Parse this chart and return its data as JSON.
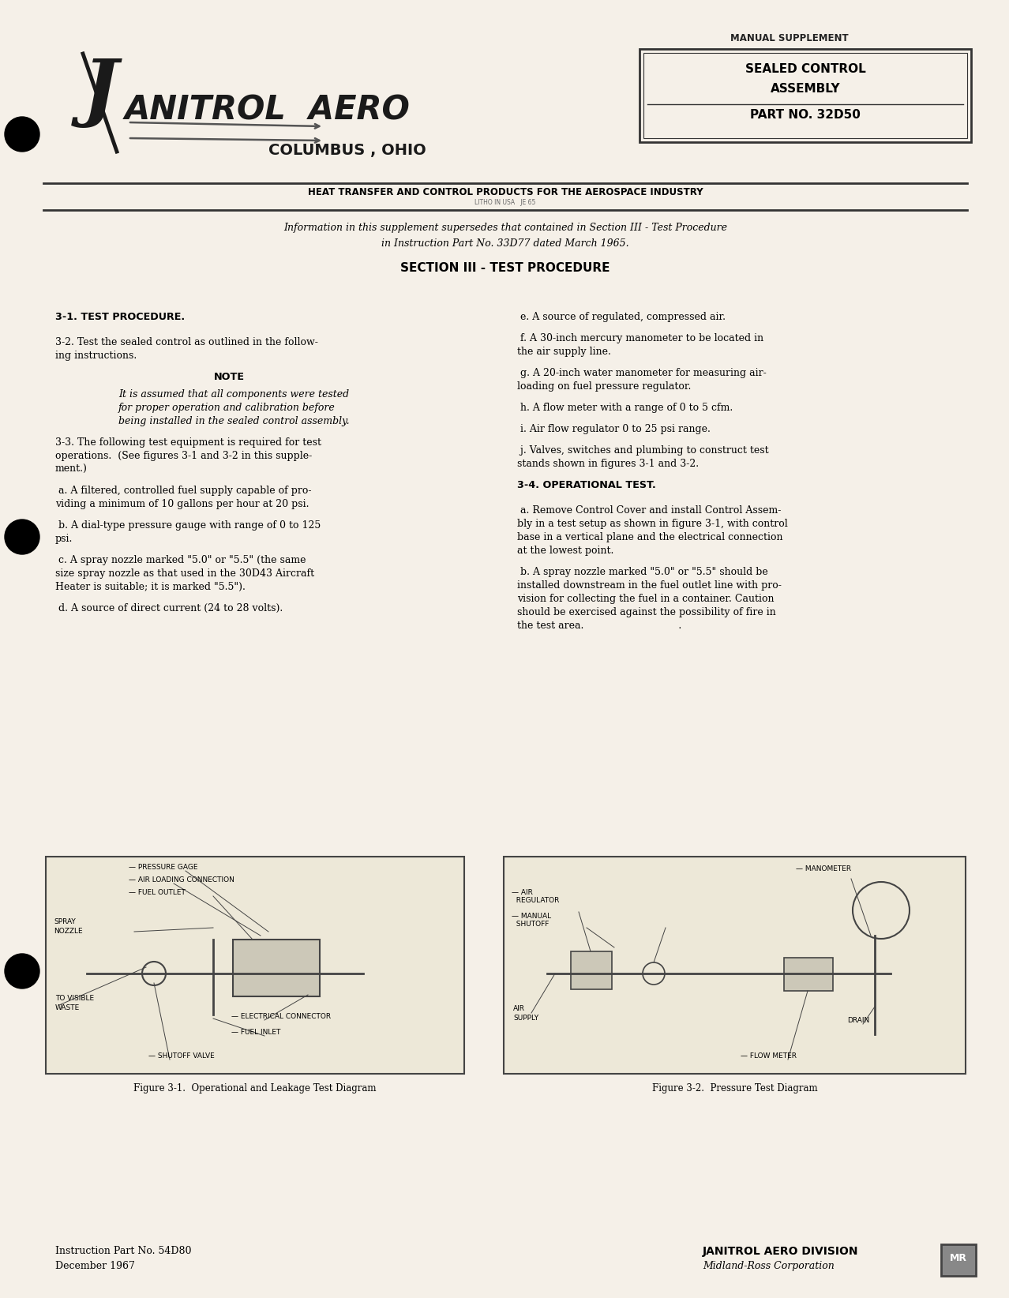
{
  "bg_color": "#f5f0e8",
  "page_width": 12.78,
  "page_height": 16.44,
  "header": {
    "manual_supplement_label": "MANUAL SUPPLEMENT",
    "box_title_line1": "SEALED CONTROL",
    "box_title_line2": "ASSEMBLY",
    "box_part_label": "PART NO. 32D50",
    "company_name": "JANITROL AERO",
    "city": "COLUMBUS , OHIO",
    "tagline": "HEAT TRANSFER AND CONTROL PRODUCTS FOR THE AEROSPACE INDUSTRY",
    "tagline_sub": "LITHO IN USA   JE 65"
  },
  "intro_text_line1": "Information in this supplement supersedes that contained in Section III - Test Procedure",
  "intro_text_line2": "in Instruction Part No. 33D77 dated March 1965.",
  "section_title": "SECTION III - TEST PROCEDURE",
  "left_col": [
    {
      "type": "heading",
      "text": "3-1. TEST PROCEDURE."
    },
    {
      "type": "body",
      "text": "3-2. Test the sealed control as outlined in the follow-\ning instructions."
    },
    {
      "type": "note_heading",
      "text": "NOTE"
    },
    {
      "type": "note_body",
      "text": "It is assumed that all components were tested\nfor proper operation and calibration before\nbeing installed in the sealed control assembly."
    },
    {
      "type": "body",
      "text": "3-3. The following test equipment is required for test\noperations.  (See figures 3-1 and 3-2 in this supple-\nment.)"
    },
    {
      "type": "body",
      "text": " a. A filtered, controlled fuel supply capable of pro-\nviding a minimum of 10 gallons per hour at 20 psi."
    },
    {
      "type": "body",
      "text": " b. A dial-type pressure gauge with range of 0 to 125\npsi."
    },
    {
      "type": "body",
      "text": " c. A spray nozzle marked \"5.0\" or \"5.5\" (the same\nsize spray nozzle as that used in the 30D43 Aircraft\nHeater is suitable; it is marked \"5.5\")."
    },
    {
      "type": "body",
      "text": " d. A source of direct current (24 to 28 volts)."
    }
  ],
  "right_col": [
    {
      "type": "body",
      "text": " e. A source of regulated, compressed air."
    },
    {
      "type": "body",
      "text": " f. A 30-inch mercury manometer to be located in\nthe air supply line."
    },
    {
      "type": "body",
      "text": " g. A 20-inch water manometer for measuring air-\nloading on fuel pressure regulator."
    },
    {
      "type": "body",
      "text": " h. A flow meter with a range of 0 to 5 cfm."
    },
    {
      "type": "body",
      "text": " i. Air flow regulator 0 to 25 psi range."
    },
    {
      "type": "body",
      "text": " j. Valves, switches and plumbing to construct test\nstands shown in figures 3-1 and 3-2."
    },
    {
      "type": "heading",
      "text": "3-4. OPERATIONAL TEST."
    },
    {
      "type": "body",
      "text": " a. Remove Control Cover and install Control Assem-\nbly in a test setup as shown in figure 3-1, with control\nbase in a vertical plane and the electrical connection\nat the lowest point."
    },
    {
      "type": "body",
      "text": " b. A spray nozzle marked \"5.0\" or \"5.5\" should be\ninstalled downstream in the fuel outlet line with pro-\nvision for collecting the fuel in a container. Caution\nshould be exercised against the possibility of fire in\nthe test area.                              ."
    }
  ],
  "fig1_caption": "Figure 3-1.  Operational and Leakage Test Diagram",
  "fig2_caption": "Figure 3-2.  Pressure Test Diagram",
  "footer_left_line1": "Instruction Part No. 54D80",
  "footer_left_line2": "December 1967",
  "footer_right_line1": "JANITROL AERO DIVISION",
  "footer_right_line2": "Midland-Ross Corporation"
}
